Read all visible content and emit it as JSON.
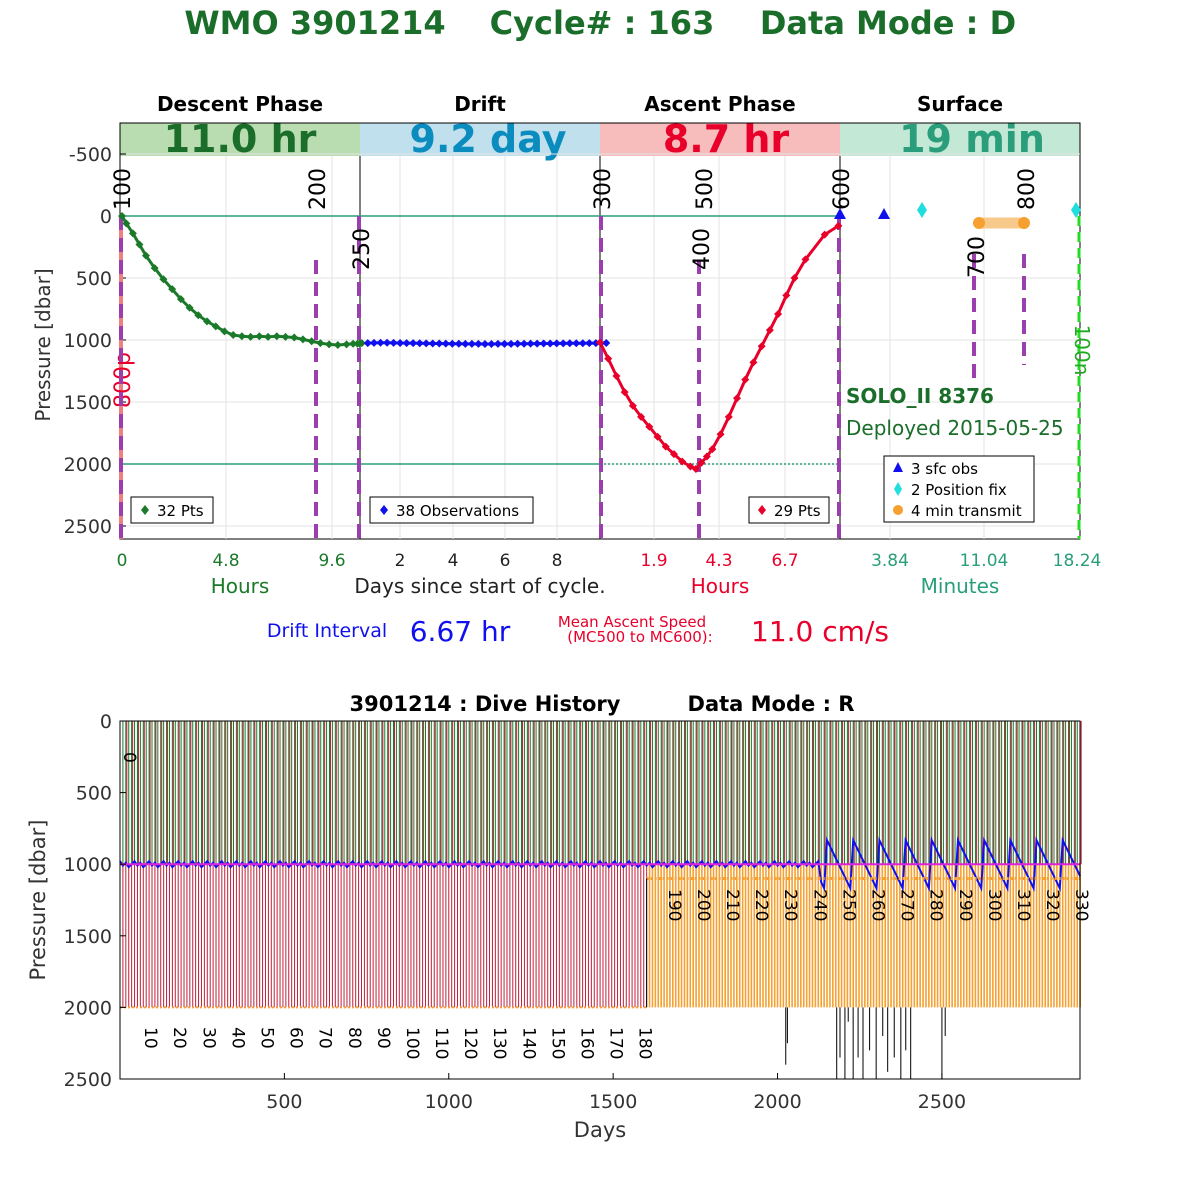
{
  "header": {
    "title_wmo": "WMO 3901214",
    "title_cycle": "Cycle# : 163",
    "title_mode": "Data Mode : D"
  },
  "phases": [
    {
      "name": "Descent Phase",
      "duration": "11.0 hr",
      "color": "#1a6e2a",
      "bg": "#b9dcb0"
    },
    {
      "name": "Drift",
      "duration": "9.2 day",
      "color": "#0b8cbf",
      "bg": "#bfe0ec"
    },
    {
      "name": "Ascent Phase",
      "duration": "8.7 hr",
      "color": "#e8002a",
      "bg": "#f7bcbc"
    },
    {
      "name": "Surface",
      "duration": "19 min",
      "color": "#2a9e7a",
      "bg": "#c4e8d6"
    }
  ],
  "top_chart": {
    "ylabel": "Pressure [dbar]",
    "yticks": [
      "-500",
      "0",
      "500",
      "1000",
      "1500",
      "2000",
      "2500"
    ],
    "xaxis_descent": {
      "ticks": [
        "0",
        "4.8",
        "9.6"
      ],
      "label": "Hours",
      "color": "#1a7a2a"
    },
    "xaxis_drift": {
      "ticks": [
        "2",
        "4",
        "6",
        "8"
      ],
      "label": "Days since start of cycle.",
      "color": "#222222"
    },
    "xaxis_ascent": {
      "ticks": [
        "1.9",
        "4.3",
        "6.7"
      ],
      "label": "Hours",
      "color": "#e8002a"
    },
    "xaxis_surface": {
      "ticks": [
        "3.84",
        "11.04",
        "18.24"
      ],
      "label": "Minutes",
      "color": "#2a9e7a"
    },
    "mission_markers": [
      "100",
      "200",
      "250",
      "300",
      "400",
      "500",
      "600",
      "700",
      "800"
    ],
    "side_labels": {
      "left": "800p",
      "right": "100n"
    },
    "legend_descent": "32 Pts",
    "legend_drift": "38 Observations",
    "legend_ascent": "29 Pts",
    "surface_legend": [
      "3 sfc obs",
      "2 Position fix",
      "4 min transmit"
    ],
    "float_name": "SOLO_II 8376",
    "deployed": "Deployed 2015-05-25"
  },
  "stats": {
    "drift_label": "Drift Interval",
    "drift_value": "6.67 hr",
    "ascent_label_1": "Mean Ascent Speed",
    "ascent_label_2": "(MC500 to MC600):",
    "ascent_value": "11.0 cm/s"
  },
  "bottom_chart": {
    "title_id": "3901214 : Dive History",
    "title_mode": "Data Mode : R",
    "ylabel": "Pressure [dbar]",
    "xlabel": "Days",
    "yticks": [
      "0",
      "500",
      "1000",
      "1500",
      "2000",
      "2500"
    ],
    "xticks": [
      "500",
      "1000",
      "1500",
      "2000",
      "2500"
    ],
    "start_label": "0",
    "cycle_labels": [
      "10",
      "20",
      "30",
      "40",
      "50",
      "60",
      "70",
      "80",
      "90",
      "100",
      "110",
      "120",
      "130",
      "140",
      "150",
      "160",
      "170",
      "180",
      "190",
      "200",
      "210",
      "220",
      "230",
      "240",
      "250",
      "260",
      "270",
      "280",
      "290",
      "300",
      "310",
      "320",
      "330"
    ]
  },
  "chart_data": [
    {
      "type": "line",
      "title": "WMO 3901214 Cycle# : 163 Data Mode : D",
      "ylabel": "Pressure [dbar]",
      "ylim": [
        2600,
        -700
      ],
      "grid": true,
      "series": [
        {
          "name": "32 Pts",
          "phase": "descent",
          "x_hours": [
            0,
            0.2,
            0.5,
            0.8,
            1.1,
            1.5,
            1.9,
            2.3,
            2.7,
            3.1,
            3.5,
            3.9,
            4.3,
            4.7,
            5.1,
            5.5,
            5.9,
            6.3,
            6.7,
            7.1,
            7.5,
            7.9,
            8.3,
            8.7,
            9.1,
            9.5,
            9.9,
            10.3,
            10.6,
            10.8,
            10.9,
            11.0
          ],
          "y": [
            0,
            60,
            140,
            230,
            320,
            420,
            510,
            590,
            670,
            740,
            800,
            850,
            890,
            930,
            960,
            970,
            975,
            970,
            975,
            970,
            975,
            980,
            995,
            1010,
            1025,
            1035,
            1040,
            1035,
            1030,
            1030,
            1028,
            1025
          ]
        },
        {
          "name": "38 Observations",
          "phase": "drift",
          "x_days": [
            0.46,
            0.7,
            0.95,
            1.2,
            1.45,
            1.7,
            1.95,
            2.2,
            2.45,
            2.7,
            2.95,
            3.2,
            3.45,
            3.7,
            3.95,
            4.2,
            4.45,
            4.7,
            4.95,
            5.2,
            5.45,
            5.7,
            5.95,
            6.2,
            6.45,
            6.7,
            6.95,
            7.2,
            7.45,
            7.7,
            7.95,
            8.2,
            8.45,
            8.7,
            8.95,
            9.2,
            9.4,
            9.6
          ],
          "y": [
            1025,
            1023,
            1022,
            1022,
            1023,
            1024,
            1025,
            1025,
            1026,
            1027,
            1028,
            1028,
            1029,
            1030,
            1030,
            1031,
            1031,
            1031,
            1032,
            1032,
            1031,
            1031,
            1031,
            1030,
            1030,
            1029,
            1029,
            1028,
            1028,
            1027,
            1027,
            1026,
            1026,
            1026,
            1025,
            1025,
            1024,
            1024
          ]
        },
        {
          "name": "29 Pts",
          "phase": "ascent",
          "x_hours": [
            0,
            0.3,
            0.6,
            0.9,
            1.2,
            1.5,
            1.8,
            2.1,
            2.4,
            2.7,
            3.0,
            3.3,
            3.5,
            3.7,
            3.9,
            4.1,
            4.4,
            4.7,
            5.0,
            5.3,
            5.6,
            5.9,
            6.2,
            6.5,
            6.8,
            7.1,
            7.5,
            8.2,
            8.7
          ],
          "y": [
            1020,
            1150,
            1290,
            1420,
            1530,
            1620,
            1700,
            1780,
            1860,
            1920,
            1980,
            2020,
            2040,
            1990,
            1940,
            1880,
            1760,
            1620,
            1470,
            1320,
            1180,
            1050,
            920,
            790,
            640,
            500,
            350,
            150,
            80
          ]
        },
        {
          "name": "3 sfc obs",
          "phase": "surface",
          "x_minutes": [
            0,
            3.84,
            7.2
          ],
          "y": [
            0,
            0,
            0
          ]
        },
        {
          "name": "2 Position fix",
          "phase": "surface",
          "x_minutes": [
            7.2,
            18.24
          ],
          "y": [
            -45,
            -45
          ]
        },
        {
          "name": "4 min transmit",
          "phase": "surface",
          "x_minutes": [
            11.04,
            15.0
          ],
          "y": [
            50,
            50
          ]
        }
      ]
    },
    {
      "type": "line",
      "title": "3901214 : Dive History Data Mode : R",
      "xlabel": "Days",
      "ylabel": "Pressure [dbar]",
      "xlim": [
        0,
        2920
      ],
      "ylim": [
        2500,
        0
      ],
      "cycles": 330,
      "cycle_interval_days": 10,
      "series": [
        {
          "name": "drift",
          "y": 1000
        },
        {
          "name": "profile",
          "y_max_cycles_1_180": 2000,
          "y_max_cycles_181_330": 2000
        },
        {
          "name": "transmit",
          "cycles_from": 181,
          "y_top": 1100
        }
      ]
    }
  ]
}
